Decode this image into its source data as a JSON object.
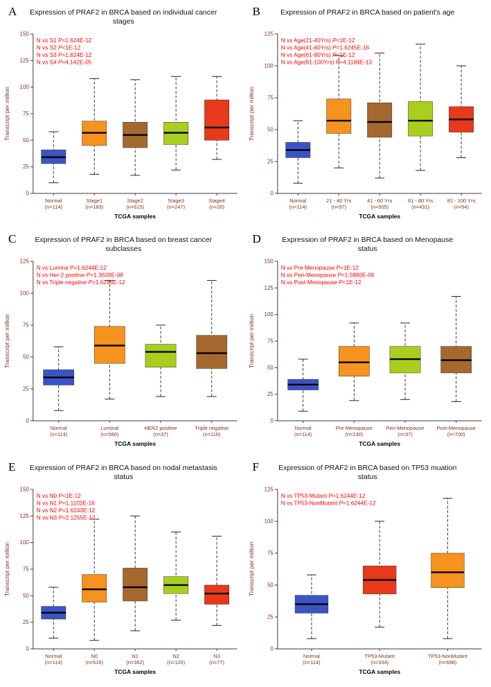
{
  "chart_data": [
    {
      "type": "box",
      "panel": "A",
      "title": "Expression of PRAF2 in BRCA based on individual cancer stages",
      "ylabel": "Transcript per million",
      "xlabel": "TCGA samples",
      "ylim": [
        0,
        150
      ],
      "yticks": [
        0,
        25,
        50,
        75,
        100,
        125,
        150
      ],
      "annotations": [
        "N vs S1 P=1.624E-12",
        "N vs S2 P<1E-12",
        "N vs S3 P=1.624E-12",
        "N vs S4 P=4.142E-05"
      ],
      "categories": [
        "Normal",
        "Stage1",
        "Stage2",
        "Stage3",
        "Stage4"
      ],
      "counts": [
        "(n=114)",
        "(n=183)",
        "(n=615)",
        "(n=247)",
        "(n=20)"
      ],
      "colors": [
        "#3b54c4",
        "#f6921e",
        "#a5682e",
        "#a9ce1d",
        "#e8391b"
      ],
      "boxes": [
        {
          "low": 10,
          "q1": 28,
          "median": 34,
          "q3": 41,
          "high": 58
        },
        {
          "low": 18,
          "q1": 45,
          "median": 57,
          "q3": 68,
          "high": 108
        },
        {
          "low": 17,
          "q1": 43,
          "median": 55,
          "q3": 67,
          "high": 107
        },
        {
          "low": 22,
          "q1": 46,
          "median": 57,
          "q3": 67,
          "high": 110
        },
        {
          "low": 32,
          "q1": 50,
          "median": 62,
          "q3": 88,
          "high": 110
        }
      ]
    },
    {
      "type": "box",
      "panel": "B",
      "title": "Expression of PRAF2 in BRCA based on patient's age",
      "ylabel": "Transcript per million",
      "xlabel": "TCGA samples",
      "ylim": [
        0,
        125
      ],
      "yticks": [
        0,
        25,
        50,
        75,
        100,
        125
      ],
      "annotations": [
        "N vs Age(21-40Yrs) P<1E-12",
        "N vs Age(41-60Yrs) P=1.6245E-16",
        "N vs Age(61-80Yrs) P<1E-12",
        "N vs Age(81-100Yrs) P=4.1189E-13"
      ],
      "categories": [
        "Normal",
        "21 - 40 Yrs",
        "41 - 60 Yrs",
        "61 - 80 Yrs",
        "81 - 100 Yrs"
      ],
      "counts": [
        "(n=114)",
        "(n=97)",
        "(n=505)",
        "(n=431)",
        "(n=54)"
      ],
      "colors": [
        "#3b54c4",
        "#f6921e",
        "#a5682e",
        "#a9ce1d",
        "#e8391b"
      ],
      "boxes": [
        {
          "low": 8,
          "q1": 28,
          "median": 34,
          "q3": 40,
          "high": 57
        },
        {
          "low": 20,
          "q1": 47,
          "median": 57,
          "q3": 74,
          "high": 108
        },
        {
          "low": 12,
          "q1": 44,
          "median": 56,
          "q3": 71,
          "high": 110
        },
        {
          "low": 18,
          "q1": 45,
          "median": 57,
          "q3": 72,
          "high": 117
        },
        {
          "low": 28,
          "q1": 48,
          "median": 58,
          "q3": 68,
          "high": 100
        }
      ]
    },
    {
      "type": "box",
      "panel": "C",
      "title": "Expression of PRAF2 in BRCA based on breast cancer subclasses",
      "ylabel": "Transcript per million",
      "xlabel": "TCGA samples",
      "ylim": [
        0,
        125
      ],
      "yticks": [
        0,
        25,
        50,
        75,
        100,
        125
      ],
      "annotations": [
        "N vs Lumina P=1.6244E-12",
        "N vs Her-2 positive P=1.3639E-08",
        "N vs Triple negative P=1.6245E-12"
      ],
      "categories": [
        "Normal",
        "Luminal",
        "HER2 positive",
        "Triple negative"
      ],
      "counts": [
        "(n=114)",
        "(n=566)",
        "(n=37)",
        "(n=116)"
      ],
      "colors": [
        "#3b54c4",
        "#f6921e",
        "#a9ce1d",
        "#a5682e"
      ],
      "boxes": [
        {
          "low": 8,
          "q1": 28,
          "median": 34,
          "q3": 40,
          "high": 58
        },
        {
          "low": 17,
          "q1": 45,
          "median": 59,
          "q3": 74,
          "high": 110
        },
        {
          "low": 19,
          "q1": 42,
          "median": 54,
          "q3": 60,
          "high": 75
        },
        {
          "low": 19,
          "q1": 41,
          "median": 53,
          "q3": 67,
          "high": 110
        }
      ]
    },
    {
      "type": "box",
      "panel": "D",
      "title": "Expression of PRAF2 in BRCA based on Menopause status",
      "ylabel": "Transcript per million",
      "xlabel": "TCGA samples",
      "ylim": [
        0,
        150
      ],
      "yticks": [
        0,
        25,
        50,
        75,
        100,
        125,
        150
      ],
      "annotations": [
        "N vs Pre-Menopause P<1E-12",
        "N vs Peri-Menopause P=1.5880E-06",
        "N vs Post-Menopause P<1E-12"
      ],
      "categories": [
        "Normal",
        "Pre-Menopause",
        "Peri-Menopause",
        "Post-Menopause"
      ],
      "counts": [
        "(n=114)",
        "(n=230)",
        "(n=37)",
        "(n=700)"
      ],
      "colors": [
        "#3b54c4",
        "#f6921e",
        "#a9ce1d",
        "#a5682e"
      ],
      "boxes": [
        {
          "low": 9,
          "q1": 29,
          "median": 34,
          "q3": 39,
          "high": 58
        },
        {
          "low": 19,
          "q1": 42,
          "median": 55,
          "q3": 70,
          "high": 92
        },
        {
          "low": 20,
          "q1": 45,
          "median": 58,
          "q3": 70,
          "high": 92
        },
        {
          "low": 18,
          "q1": 45,
          "median": 57,
          "q3": 70,
          "high": 117
        }
      ]
    },
    {
      "type": "box",
      "panel": "E",
      "title": "Expression of PRAF2 in BRCA based on nodal metastasis status",
      "ylabel": "Transcript per million",
      "xlabel": "TCGA samples",
      "ylim": [
        0,
        150
      ],
      "yticks": [
        0,
        25,
        50,
        75,
        100,
        125,
        150
      ],
      "annotations": [
        "N vs N0 P<1E-12",
        "N vs N1 P=1.1102E-16",
        "N vs N2 P=1.6243E-12",
        "N vs N3 P=2.1255E-12"
      ],
      "categories": [
        "Normal",
        "N0",
        "N1",
        "N2",
        "N3"
      ],
      "counts": [
        "(n=114)",
        "(n=516)",
        "(n=362)",
        "(n=120)",
        "(n=77)"
      ],
      "colors": [
        "#3b54c4",
        "#f6921e",
        "#a5682e",
        "#a9ce1d",
        "#e8391b"
      ],
      "boxes": [
        {
          "low": 10,
          "q1": 28,
          "median": 34,
          "q3": 40,
          "high": 58
        },
        {
          "low": 8,
          "q1": 44,
          "median": 56,
          "q3": 70,
          "high": 122
        },
        {
          "low": 17,
          "q1": 45,
          "median": 58,
          "q3": 76,
          "high": 125
        },
        {
          "low": 27,
          "q1": 52,
          "median": 60,
          "q3": 68,
          "high": 110
        },
        {
          "low": 22,
          "q1": 42,
          "median": 52,
          "q3": 60,
          "high": 106
        }
      ]
    },
    {
      "type": "box",
      "panel": "F",
      "title": "Expression of PRAF2 in BRCA based on TP53 muation status",
      "ylabel": "Transcript per million",
      "xlabel": "TCGA samples",
      "ylim": [
        0,
        125
      ],
      "yticks": [
        0,
        25,
        50,
        75,
        100,
        125
      ],
      "annotations": [
        "N vs TP53-Mutant P=1.6244E-12",
        "N vs TP53-NonMutant P=1.6244E-12"
      ],
      "categories": [
        "Normal",
        "TP53-Mutant",
        "TP53-NonMutant"
      ],
      "counts": [
        "(n=114)",
        "(n=334)",
        "(n=698)"
      ],
      "colors": [
        "#3b54c4",
        "#e8391b",
        "#f6921e"
      ],
      "boxes": [
        {
          "low": 8,
          "q1": 28,
          "median": 35,
          "q3": 42,
          "high": 58
        },
        {
          "low": 17,
          "q1": 43,
          "median": 54,
          "q3": 65,
          "high": 100
        },
        {
          "low": 8,
          "q1": 48,
          "median": 60,
          "q3": 75,
          "high": 118
        }
      ]
    }
  ],
  "style": {
    "annotation_color": "#ff0000",
    "axis_label_color": "#7b3222",
    "axis_line_color": "#3a3a3a"
  }
}
